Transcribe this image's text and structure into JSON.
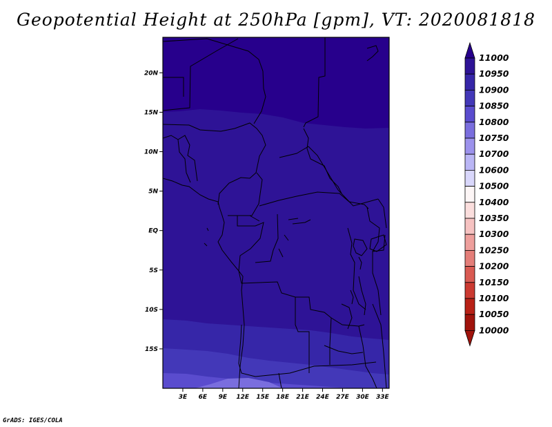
{
  "title": "Geopotential Height at 250hPa [gpm], VT: 2020081818",
  "credit": "GrADS: IGES/COLA",
  "map": {
    "lat_labels": [
      "20N",
      "15N",
      "10N",
      "5N",
      "EQ",
      "5S",
      "10S",
      "15S"
    ],
    "lon_labels": [
      "3E",
      "6E",
      "9E",
      "12E",
      "15E",
      "18E",
      "21E",
      "24E",
      "27E",
      "30E",
      "33E"
    ],
    "extent": {
      "lon": [
        0,
        34
      ],
      "lat": [
        -20,
        24.5
      ]
    }
  },
  "colorbar": {
    "levels": [
      "11000",
      "10950",
      "10900",
      "10850",
      "10800",
      "10750",
      "10700",
      "10600",
      "10500",
      "10400",
      "10350",
      "10300",
      "10250",
      "10200",
      "10150",
      "10100",
      "10050",
      "10000"
    ],
    "colors": [
      "#27008c",
      "#2e1396",
      "#3626a8",
      "#4338b8",
      "#5a4cce",
      "#7a6ede",
      "#9c92ec",
      "#bab6f5",
      "#d9d7fb",
      "#fdf6f6",
      "#fbdedd",
      "#f6c2c1",
      "#ee9f9c",
      "#e47e79",
      "#d95a52",
      "#cb3a31",
      "#b82116",
      "#a0130c"
    ]
  },
  "colors": {
    "band_top": "#27008c",
    "band_middle": "#2e1396",
    "band_lower": "#3626a8",
    "band_bottom": "#4338b8",
    "band_lowest": "#5a4cce",
    "band_south_edge": "#7a6ede"
  }
}
